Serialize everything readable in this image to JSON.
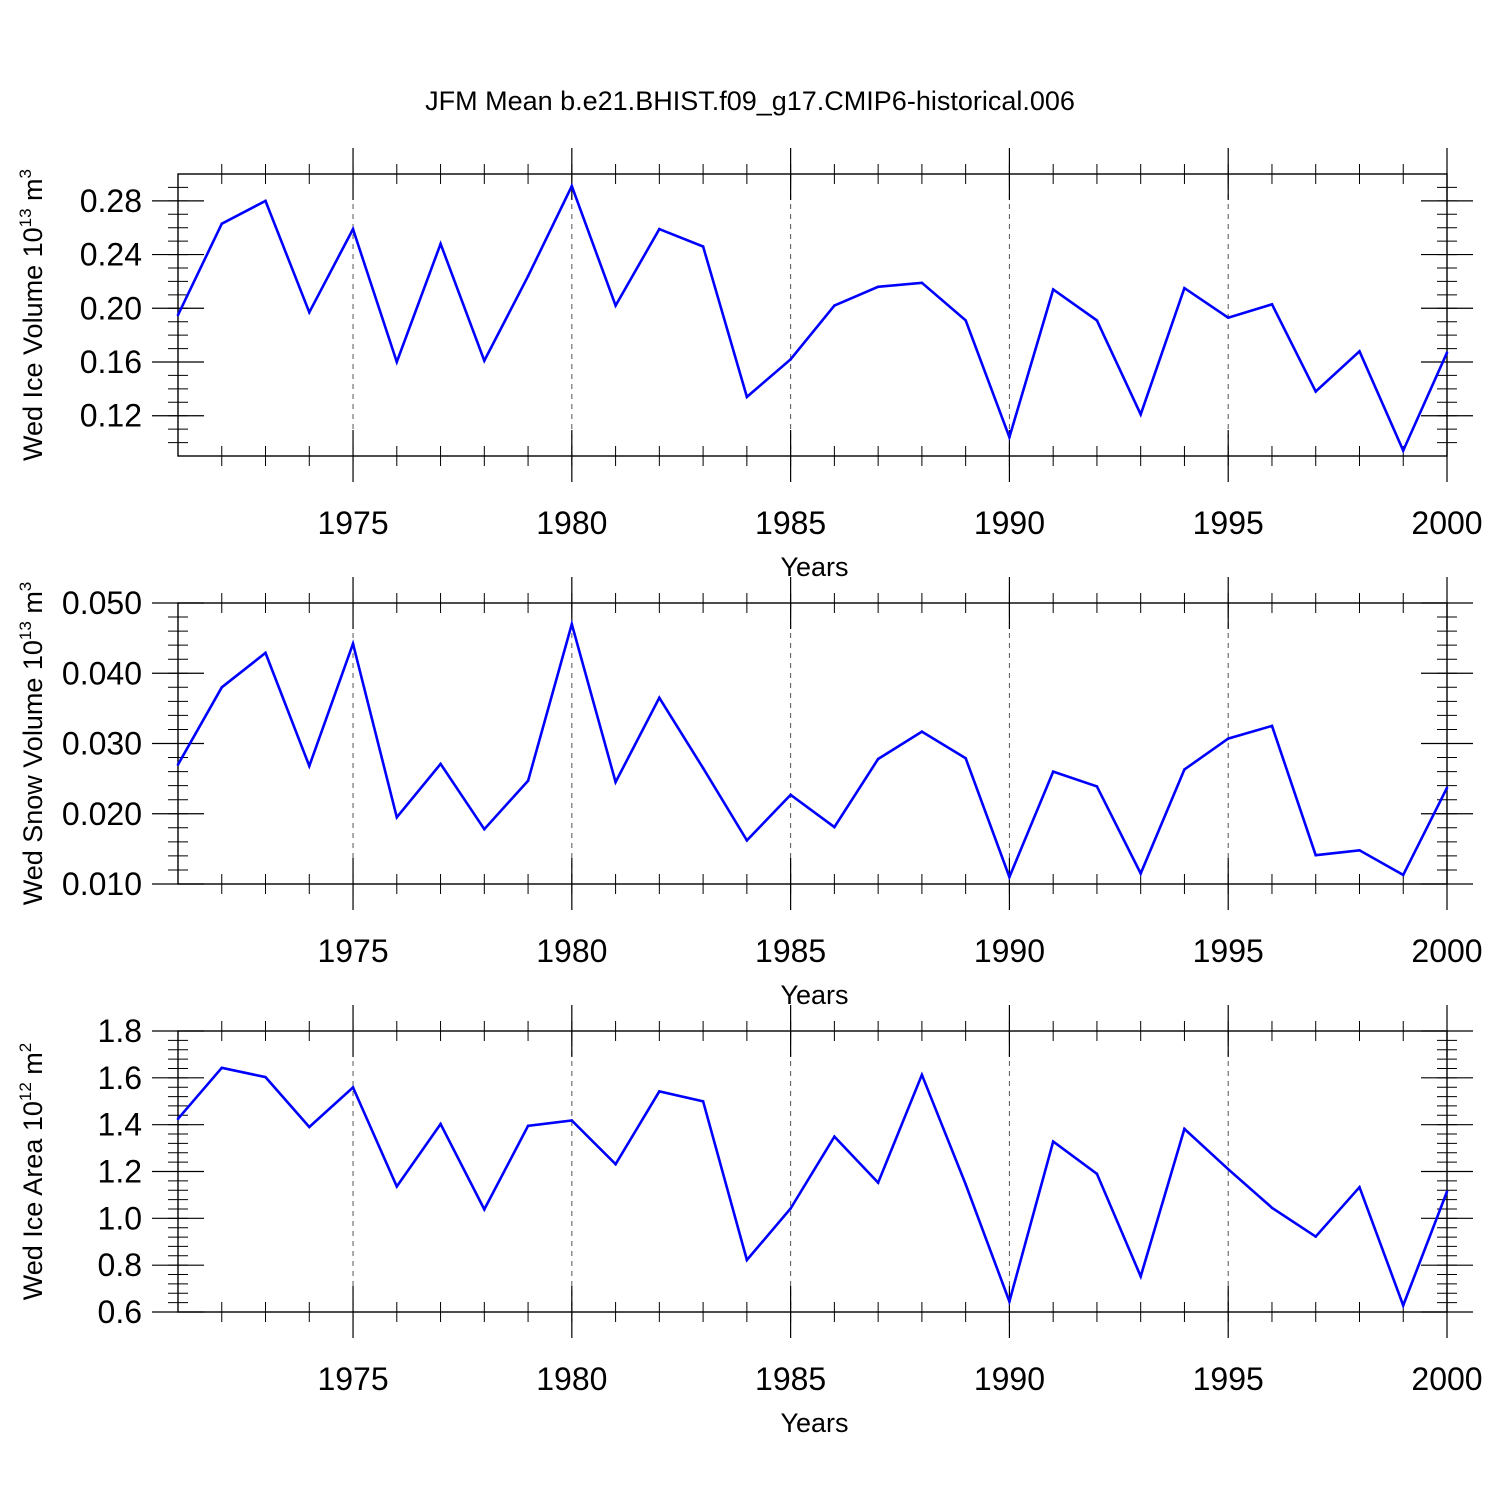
{
  "title": "JFM Mean b.e21.BHIST.f09_g17.CMIP6-historical.006",
  "chart_data": [
    {
      "type": "line",
      "title": "",
      "xlabel": "Years",
      "ylabel": {
        "text": "Wed Ice Volume 10",
        "exp": "13",
        "unit": " m",
        "unit_exp": "3"
      },
      "xlim": [
        1971,
        2000
      ],
      "ylim": [
        0.09,
        0.3
      ],
      "x_ticks": [
        1975,
        1980,
        1985,
        1990,
        1995,
        2000
      ],
      "x_tick_labels": [
        "1975",
        "1980",
        "1985",
        "1990",
        "1995",
        "2000"
      ],
      "y_ticks": [
        0.12,
        0.16,
        0.2,
        0.24,
        0.28
      ],
      "y_tick_labels": [
        "0.12",
        "0.16",
        "0.20",
        "0.24",
        "0.28"
      ],
      "grid": "dashed vertical at major x ticks",
      "x": [
        1971,
        1972,
        1973,
        1974,
        1975,
        1976,
        1977,
        1978,
        1979,
        1980,
        1981,
        1982,
        1983,
        1984,
        1985,
        1986,
        1987,
        1988,
        1989,
        1990,
        1991,
        1992,
        1993,
        1994,
        1995,
        1996,
        1997,
        1998,
        1999,
        2000
      ],
      "series": [
        {
          "color": "#0000ff",
          "values": [
            0.195,
            0.263,
            0.28,
            0.197,
            0.259,
            0.16,
            0.248,
            0.161,
            0.224,
            0.291,
            0.202,
            0.259,
            0.246,
            0.134,
            0.162,
            0.202,
            0.216,
            0.219,
            0.191,
            0.104,
            0.214,
            0.191,
            0.121,
            0.215,
            0.193,
            0.203,
            0.138,
            0.168,
            0.094,
            0.167
          ]
        }
      ]
    },
    {
      "type": "line",
      "title": "",
      "xlabel": "Years",
      "ylabel": {
        "text": "Wed Snow Volume 10",
        "exp": "13",
        "unit": " m",
        "unit_exp": "3"
      },
      "xlim": [
        1971,
        2000
      ],
      "ylim": [
        0.01,
        0.05
      ],
      "x_ticks": [
        1975,
        1980,
        1985,
        1990,
        1995,
        2000
      ],
      "x_tick_labels": [
        "1975",
        "1980",
        "1985",
        "1990",
        "1995",
        "2000"
      ],
      "y_ticks": [
        0.01,
        0.02,
        0.03,
        0.04,
        0.05
      ],
      "y_tick_labels": [
        "0.010",
        "0.020",
        "0.030",
        "0.040",
        "0.050"
      ],
      "grid": "dashed vertical at major x ticks",
      "x": [
        1971,
        1972,
        1973,
        1974,
        1975,
        1976,
        1977,
        1978,
        1979,
        1980,
        1981,
        1982,
        1983,
        1984,
        1985,
        1986,
        1987,
        1988,
        1989,
        1990,
        1991,
        1992,
        1993,
        1994,
        1995,
        1996,
        1997,
        1998,
        1999,
        2000
      ],
      "series": [
        {
          "color": "#0000ff",
          "values": [
            0.027,
            0.038,
            0.0429,
            0.0268,
            0.0442,
            0.0195,
            0.0271,
            0.0178,
            0.0247,
            0.047,
            0.0245,
            0.0365,
            0.0265,
            0.0162,
            0.0227,
            0.0181,
            0.0278,
            0.0317,
            0.0279,
            0.011,
            0.026,
            0.0239,
            0.0115,
            0.0263,
            0.0307,
            0.0325,
            0.0141,
            0.0148,
            0.0113,
            0.0237
          ]
        }
      ]
    },
    {
      "type": "line",
      "title": "",
      "xlabel": "Years",
      "ylabel": {
        "text": "Wed Ice Area 10",
        "exp": "12",
        "unit": " m",
        "unit_exp": "2"
      },
      "xlim": [
        1971,
        2000
      ],
      "ylim": [
        0.6,
        1.8
      ],
      "x_ticks": [
        1975,
        1980,
        1985,
        1990,
        1995,
        2000
      ],
      "x_tick_labels": [
        "1975",
        "1980",
        "1985",
        "1990",
        "1995",
        "2000"
      ],
      "y_ticks": [
        0.6,
        0.8,
        1.0,
        1.2,
        1.4,
        1.6,
        1.8
      ],
      "y_tick_labels": [
        "0.6",
        "0.8",
        "1.0",
        "1.2",
        "1.4",
        "1.6",
        "1.8"
      ],
      "grid": "dashed vertical at major x ticks",
      "x": [
        1971,
        1972,
        1973,
        1974,
        1975,
        1976,
        1977,
        1978,
        1979,
        1980,
        1981,
        1982,
        1983,
        1984,
        1985,
        1986,
        1987,
        1988,
        1989,
        1990,
        1991,
        1992,
        1993,
        1994,
        1995,
        1996,
        1997,
        1998,
        1999,
        2000
      ],
      "series": [
        {
          "color": "#0000ff",
          "values": [
            1.425,
            1.643,
            1.603,
            1.39,
            1.559,
            1.136,
            1.403,
            1.038,
            1.395,
            1.418,
            1.231,
            1.542,
            1.5,
            0.822,
            1.042,
            1.349,
            1.152,
            1.613,
            1.145,
            0.645,
            1.328,
            1.19,
            0.752,
            1.382,
            1.21,
            1.045,
            0.922,
            1.133,
            0.628,
            1.114
          ]
        }
      ]
    }
  ]
}
